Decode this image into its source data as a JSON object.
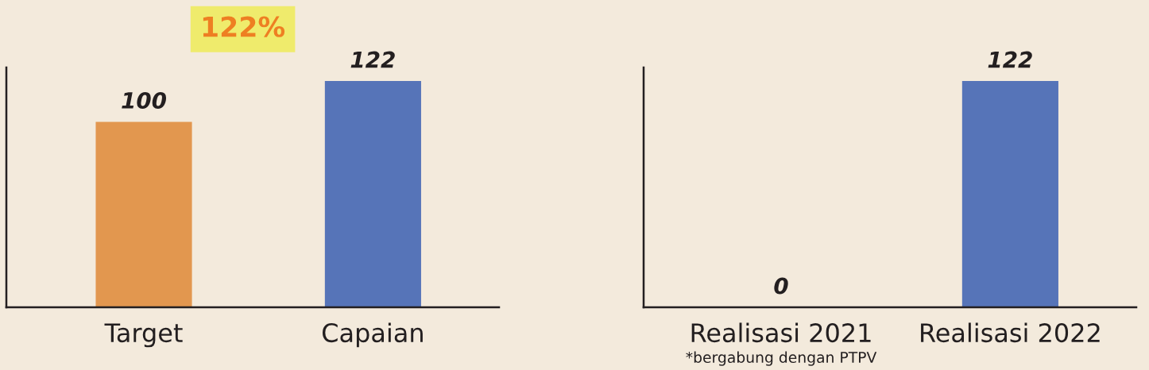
{
  "chart_data": [
    {
      "type": "bar",
      "title": "122%",
      "categories": [
        "Target",
        "Capaian"
      ],
      "values": [
        100,
        122
      ],
      "colors": [
        "#e2974f",
        "#5674b8"
      ],
      "data_labels": true,
      "tick_labels": "x"
    },
    {
      "type": "bar",
      "categories": [
        "Realisasi 2021",
        "Realisasi 2022"
      ],
      "values": [
        0,
        122
      ],
      "color": "#5674b8",
      "data_labels": true,
      "tick_labels": "x",
      "annotations": [
        "*bergabung dengan PTPV"
      ]
    }
  ]
}
